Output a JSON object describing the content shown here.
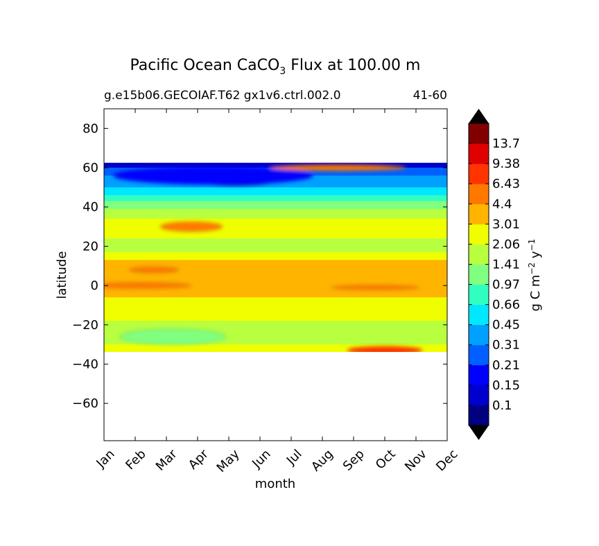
{
  "chart_data": {
    "type": "contour",
    "title_main": "Pacific Ocean CaCO",
    "title_sub": "3",
    "title_tail": "Flux at 100.00 m",
    "subtitle_left": "g.e15b06.GECOIAF.T62 gx1v6.ctrl.002.0",
    "subtitle_right": "41-60",
    "xlabel": "month",
    "ylabel": "latitude",
    "x_categories": [
      "Jan",
      "Feb",
      "Mar",
      "Apr",
      "May",
      "Jun",
      "Jul",
      "Aug",
      "Sep",
      "Oct",
      "Nov",
      "Dec"
    ],
    "y_ticks": [
      "80",
      "60",
      "40",
      "20",
      "0",
      "−20",
      "−40",
      "−60"
    ],
    "y_tick_values": [
      80,
      60,
      40,
      20,
      0,
      -20,
      -40,
      -60
    ],
    "ylim": [
      -79,
      90
    ],
    "data_extent": {
      "lat_min": -34,
      "lat_max": 62.5
    },
    "colorbar": {
      "label_parts": [
        "g C m",
        "−2",
        " y",
        "−1"
      ],
      "levels": [
        "0.1",
        "0.15",
        "0.21",
        "0.31",
        "0.45",
        "0.66",
        "0.97",
        "1.41",
        "2.06",
        "3.01",
        "4.4",
        "6.43",
        "9.38",
        "13.7"
      ],
      "colors": [
        "#000080",
        "#0000cd",
        "#0000ff",
        "#0060ff",
        "#00a0ff",
        "#00e8ff",
        "#30ffc0",
        "#80ff80",
        "#b8ff40",
        "#f0ff00",
        "#ffb400",
        "#ff7800",
        "#ff3400",
        "#e00000",
        "#800000"
      ],
      "under_color": "#000000",
      "over_color": "#000000"
    },
    "regions": [
      {
        "label": "north-subpolar-dark",
        "level": 0,
        "month": 4.2,
        "lat": 54,
        "rx": 1.4,
        "ry": 3
      },
      {
        "label": "north-subpolar-blue",
        "level": 2,
        "month": 3.5,
        "lat": 56,
        "rx": 3.2,
        "ry": 4.5
      },
      {
        "label": "north-summer-bloom",
        "level": 11,
        "month": 7.5,
        "lat": 60,
        "rx": 2.2,
        "ry": 1.6
      },
      {
        "label": "subtropical-north-peak",
        "level": 12,
        "month": 3.0,
        "lat": 31,
        "rx": 0.35,
        "ry": 1.2
      },
      {
        "label": "subtropical-north-high",
        "level": 11,
        "month": 2.8,
        "lat": 30,
        "rx": 1.0,
        "ry": 2.5
      },
      {
        "label": "equator-band",
        "level": 11,
        "month": 1.2,
        "lat": 0,
        "rx": 1.6,
        "ry": 1.5
      },
      {
        "label": "equator-band-2",
        "level": 11,
        "month": 8.7,
        "lat": -1,
        "rx": 1.4,
        "ry": 1.2
      },
      {
        "label": "north-tropical-spot",
        "level": 11,
        "month": 1.6,
        "lat": 8,
        "rx": 0.8,
        "ry": 1.5
      },
      {
        "label": "south-gyre",
        "level": 7,
        "month": 2.2,
        "lat": -26,
        "rx": 1.7,
        "ry": 4
      },
      {
        "label": "south-spring-bloom",
        "level": 12,
        "month": 9.0,
        "lat": -33,
        "rx": 1.2,
        "ry": 2
      }
    ]
  }
}
